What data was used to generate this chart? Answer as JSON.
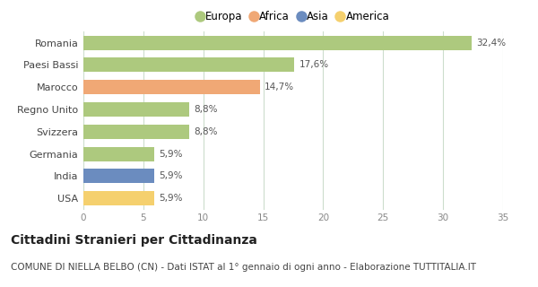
{
  "categories": [
    "Romania",
    "Paesi Bassi",
    "Marocco",
    "Regno Unito",
    "Svizzera",
    "Germania",
    "India",
    "USA"
  ],
  "values": [
    32.4,
    17.6,
    14.7,
    8.8,
    8.8,
    5.9,
    5.9,
    5.9
  ],
  "labels": [
    "32,4%",
    "17,6%",
    "14,7%",
    "8,8%",
    "8,8%",
    "5,9%",
    "5,9%",
    "5,9%"
  ],
  "colors": [
    "#adc97e",
    "#adc97e",
    "#f0a875",
    "#adc97e",
    "#adc97e",
    "#adc97e",
    "#6b8cbf",
    "#f5d06e"
  ],
  "legend": [
    {
      "label": "Europa",
      "color": "#adc97e"
    },
    {
      "label": "Africa",
      "color": "#f0a875"
    },
    {
      "label": "Asia",
      "color": "#6b8cbf"
    },
    {
      "label": "America",
      "color": "#f5d06e"
    }
  ],
  "xlim": [
    0,
    35
  ],
  "xticks": [
    0,
    5,
    10,
    15,
    20,
    25,
    30,
    35
  ],
  "title": "Cittadini Stranieri per Cittadinanza",
  "subtitle": "COMUNE DI NIELLA BELBO (CN) - Dati ISTAT al 1° gennaio di ogni anno - Elaborazione TUTTITALIA.IT",
  "title_fontsize": 10,
  "subtitle_fontsize": 7.5,
  "bar_height": 0.65,
  "background_color": "#ffffff",
  "grid_color": "#ccddcc"
}
